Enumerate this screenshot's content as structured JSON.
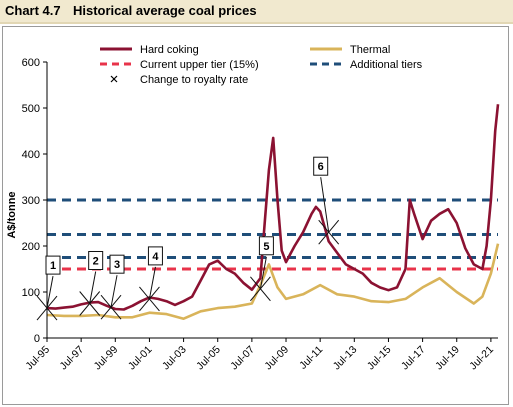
{
  "header": {
    "chart_number": "Chart 4.7",
    "title": "Historical average coal prices"
  },
  "colors": {
    "hard_coking": "#8b1232",
    "thermal": "#d9b45a",
    "upper_tier": "#e8334a",
    "additional_tiers": "#1f4e79",
    "header_bg": "#f1e9cf"
  },
  "chart_data": {
    "type": "line",
    "title": "Historical average coal prices",
    "ylabel": "A$/tonne",
    "xlabel": "",
    "ylim": [
      0,
      600
    ],
    "xlim": [
      "1995-07",
      "2021-12"
    ],
    "yticks": [
      0,
      100,
      200,
      300,
      400,
      500,
      600
    ],
    "xticks": [
      {
        "date": "1995-07",
        "label": "Jul-95"
      },
      {
        "date": "1997-07",
        "label": "Jul-97"
      },
      {
        "date": "1999-07",
        "label": "Jul-99"
      },
      {
        "date": "2001-07",
        "label": "Jul-01"
      },
      {
        "date": "2003-07",
        "label": "Jul-03"
      },
      {
        "date": "2005-07",
        "label": "Jul-05"
      },
      {
        "date": "2007-07",
        "label": "Jul-07"
      },
      {
        "date": "2009-07",
        "label": "Jul-09"
      },
      {
        "date": "2011-07",
        "label": "Jul-11"
      },
      {
        "date": "2013-07",
        "label": "Jul-13"
      },
      {
        "date": "2015-07",
        "label": "Jul-15"
      },
      {
        "date": "2017-07",
        "label": "Jul-17"
      },
      {
        "date": "2019-07",
        "label": "Jul-19"
      },
      {
        "date": "2021-07",
        "label": "Jul-21"
      }
    ],
    "grid": false,
    "legend": {
      "placement": "top",
      "entries": [
        {
          "label": "Hard coking",
          "style": "solid",
          "color": "#8b1232"
        },
        {
          "label": "Thermal",
          "style": "solid",
          "color": "#d9b45a"
        },
        {
          "label": "Current upper tier (15%)",
          "style": "dashed",
          "color": "#e8334a"
        },
        {
          "label": "Additional tiers",
          "style": "dashed",
          "color": "#1f4e79"
        },
        {
          "label": "Change to royalty rate",
          "style": "marker"
        }
      ]
    },
    "series": [
      {
        "name": "Hard coking",
        "color": "#8b1232",
        "points": [
          [
            "1995-07",
            65
          ],
          [
            "1996-01",
            64
          ],
          [
            "1996-07",
            66
          ],
          [
            "1997-01",
            68
          ],
          [
            "1997-07",
            73
          ],
          [
            "1998-01",
            77
          ],
          [
            "1998-07",
            78
          ],
          [
            "1999-01",
            70
          ],
          [
            "1999-07",
            63
          ],
          [
            "2000-01",
            62
          ],
          [
            "2000-07",
            70
          ],
          [
            "2001-01",
            80
          ],
          [
            "2001-07",
            88
          ],
          [
            "2002-01",
            85
          ],
          [
            "2002-07",
            80
          ],
          [
            "2003-01",
            72
          ],
          [
            "2003-07",
            80
          ],
          [
            "2004-01",
            90
          ],
          [
            "2004-07",
            125
          ],
          [
            "2005-01",
            160
          ],
          [
            "2005-07",
            168
          ],
          [
            "2006-01",
            150
          ],
          [
            "2006-07",
            140
          ],
          [
            "2007-01",
            120
          ],
          [
            "2007-07",
            105
          ],
          [
            "2008-01",
            130
          ],
          [
            "2008-04",
            250
          ],
          [
            "2008-07",
            365
          ],
          [
            "2008-10",
            435
          ],
          [
            "2009-01",
            300
          ],
          [
            "2009-04",
            190
          ],
          [
            "2009-07",
            165
          ],
          [
            "2010-01",
            200
          ],
          [
            "2010-07",
            230
          ],
          [
            "2011-01",
            270
          ],
          [
            "2011-04",
            285
          ],
          [
            "2011-07",
            275
          ],
          [
            "2012-01",
            210
          ],
          [
            "2012-07",
            185
          ],
          [
            "2013-01",
            160
          ],
          [
            "2013-07",
            150
          ],
          [
            "2014-01",
            140
          ],
          [
            "2014-07",
            120
          ],
          [
            "2015-01",
            110
          ],
          [
            "2015-07",
            104
          ],
          [
            "2016-01",
            110
          ],
          [
            "2016-07",
            150
          ],
          [
            "2016-10",
            300
          ],
          [
            "2017-01",
            270
          ],
          [
            "2017-07",
            215
          ],
          [
            "2018-01",
            255
          ],
          [
            "2018-07",
            270
          ],
          [
            "2019-01",
            280
          ],
          [
            "2019-07",
            250
          ],
          [
            "2020-01",
            195
          ],
          [
            "2020-07",
            160
          ],
          [
            "2021-01",
            150
          ],
          [
            "2021-04",
            200
          ],
          [
            "2021-07",
            300
          ],
          [
            "2021-10",
            450
          ],
          [
            "2021-12",
            508
          ]
        ]
      },
      {
        "name": "Thermal",
        "color": "#d9b45a",
        "points": [
          [
            "1995-07",
            50
          ],
          [
            "1996-07",
            48
          ],
          [
            "1997-07",
            48
          ],
          [
            "1998-07",
            50
          ],
          [
            "1999-07",
            45
          ],
          [
            "2000-07",
            45
          ],
          [
            "2001-07",
            55
          ],
          [
            "2002-07",
            52
          ],
          [
            "2003-07",
            42
          ],
          [
            "2004-07",
            58
          ],
          [
            "2005-07",
            65
          ],
          [
            "2006-07",
            68
          ],
          [
            "2007-07",
            75
          ],
          [
            "2008-01",
            115
          ],
          [
            "2008-07",
            160
          ],
          [
            "2009-01",
            110
          ],
          [
            "2009-07",
            85
          ],
          [
            "2010-07",
            95
          ],
          [
            "2011-07",
            115
          ],
          [
            "2012-07",
            95
          ],
          [
            "2013-07",
            90
          ],
          [
            "2014-07",
            80
          ],
          [
            "2015-07",
            78
          ],
          [
            "2016-07",
            85
          ],
          [
            "2017-07",
            110
          ],
          [
            "2018-07",
            130
          ],
          [
            "2019-07",
            100
          ],
          [
            "2020-07",
            75
          ],
          [
            "2021-01",
            90
          ],
          [
            "2021-07",
            140
          ],
          [
            "2021-12",
            205
          ]
        ]
      }
    ],
    "reference_lines": [
      {
        "name": "Current upper tier (15%)",
        "y": 150,
        "style": "dashed",
        "color": "#e8334a"
      },
      {
        "name": "Additional tiers",
        "y": 175,
        "style": "dashed",
        "color": "#1f4e79"
      },
      {
        "name": "Additional tiers",
        "y": 225,
        "style": "dashed",
        "color": "#1f4e79"
      },
      {
        "name": "Additional tiers",
        "y": 300,
        "style": "dashed",
        "color": "#1f4e79"
      }
    ],
    "annotations": [
      {
        "label": "1",
        "date": "1995-07",
        "value": 65
      },
      {
        "label": "2",
        "date": "1998-01",
        "value": 75
      },
      {
        "label": "3",
        "date": "1999-04",
        "value": 67
      },
      {
        "label": "4",
        "date": "2001-07",
        "value": 85
      },
      {
        "label": "5",
        "date": "2008-01",
        "value": 107
      },
      {
        "label": "6",
        "date": "2012-01",
        "value": 230
      }
    ]
  }
}
